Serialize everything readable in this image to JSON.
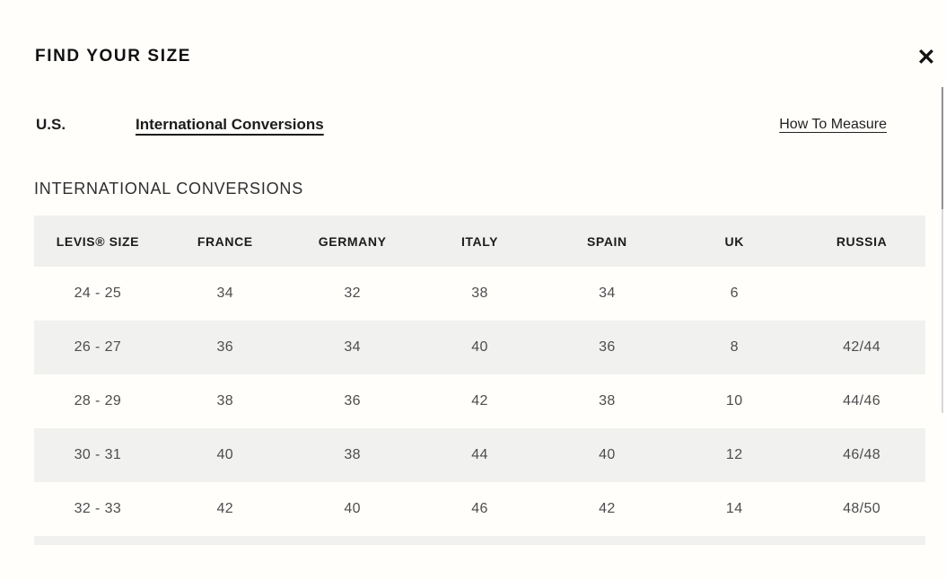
{
  "modal": {
    "title": "FIND YOUR SIZE",
    "close_icon": "✕"
  },
  "nav": {
    "tab_us": "U.S.",
    "tab_international": "International Conversions",
    "active_tab": "International Conversions",
    "measure_link": "How To Measure"
  },
  "section": {
    "heading": "INTERNATIONAL CONVERSIONS"
  },
  "table": {
    "headers": [
      "LEVIS® SIZE",
      "FRANCE",
      "GERMANY",
      "ITALY",
      "SPAIN",
      "UK",
      "RUSSIA"
    ],
    "rows": [
      [
        "24 - 25",
        "34",
        "32",
        "38",
        "34",
        "6",
        ""
      ],
      [
        "26 - 27",
        "36",
        "34",
        "40",
        "36",
        "8",
        "42/44"
      ],
      [
        "28 - 29",
        "38",
        "36",
        "42",
        "38",
        "10",
        "44/46"
      ],
      [
        "30 - 31",
        "40",
        "38",
        "44",
        "40",
        "12",
        "46/48"
      ],
      [
        "32 - 33",
        "42",
        "40",
        "46",
        "42",
        "14",
        "48/50"
      ]
    ]
  },
  "colors": {
    "background": "#fffefb",
    "row_alt_bg": "#f1f1ef",
    "header_bg": "#f0f0ee",
    "text_primary": "#111111",
    "text_cell": "#4d4d4d"
  }
}
